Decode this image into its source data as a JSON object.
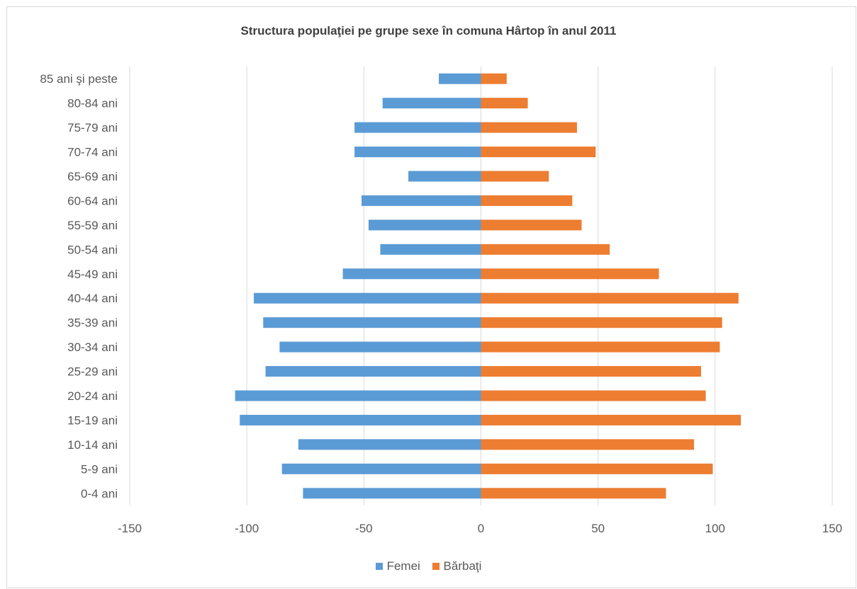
{
  "chart_data": {
    "type": "bar",
    "orientation": "horizontal",
    "title": "Structura populaţiei pe grupe sexe în comuna Hârtop în anul 2011",
    "categories": [
      "85 ani şi peste",
      "80-84 ani",
      "75-79 ani",
      "70-74 ani",
      "65-69 ani",
      "60-64 ani",
      "55-59 ani",
      "50-54 ani",
      "45-49 ani",
      "40-44 ani",
      "35-39 ani",
      "30-34 ani",
      "25-29 ani",
      "20-24 ani",
      "15-19 ani",
      "10-14 ani",
      "5-9 ani",
      "0-4 ani"
    ],
    "series": [
      {
        "name": "Femei",
        "color": "#5b9bd5",
        "values": [
          -18,
          -42,
          -54,
          -54,
          -31,
          -51,
          -48,
          -43,
          -59,
          -97,
          -93,
          -86,
          -92,
          -105,
          -103,
          -78,
          -85,
          -76
        ]
      },
      {
        "name": "Bărbaţi",
        "color": "#ed7d31",
        "values": [
          11,
          20,
          41,
          49,
          29,
          39,
          43,
          55,
          76,
          110,
          103,
          102,
          94,
          96,
          111,
          91,
          99,
          79
        ]
      }
    ],
    "xlim": [
      -150,
      150
    ],
    "xticks": [
      -150,
      -100,
      -50,
      0,
      50,
      100,
      150
    ],
    "grid": true,
    "legend_position": "bottom"
  }
}
